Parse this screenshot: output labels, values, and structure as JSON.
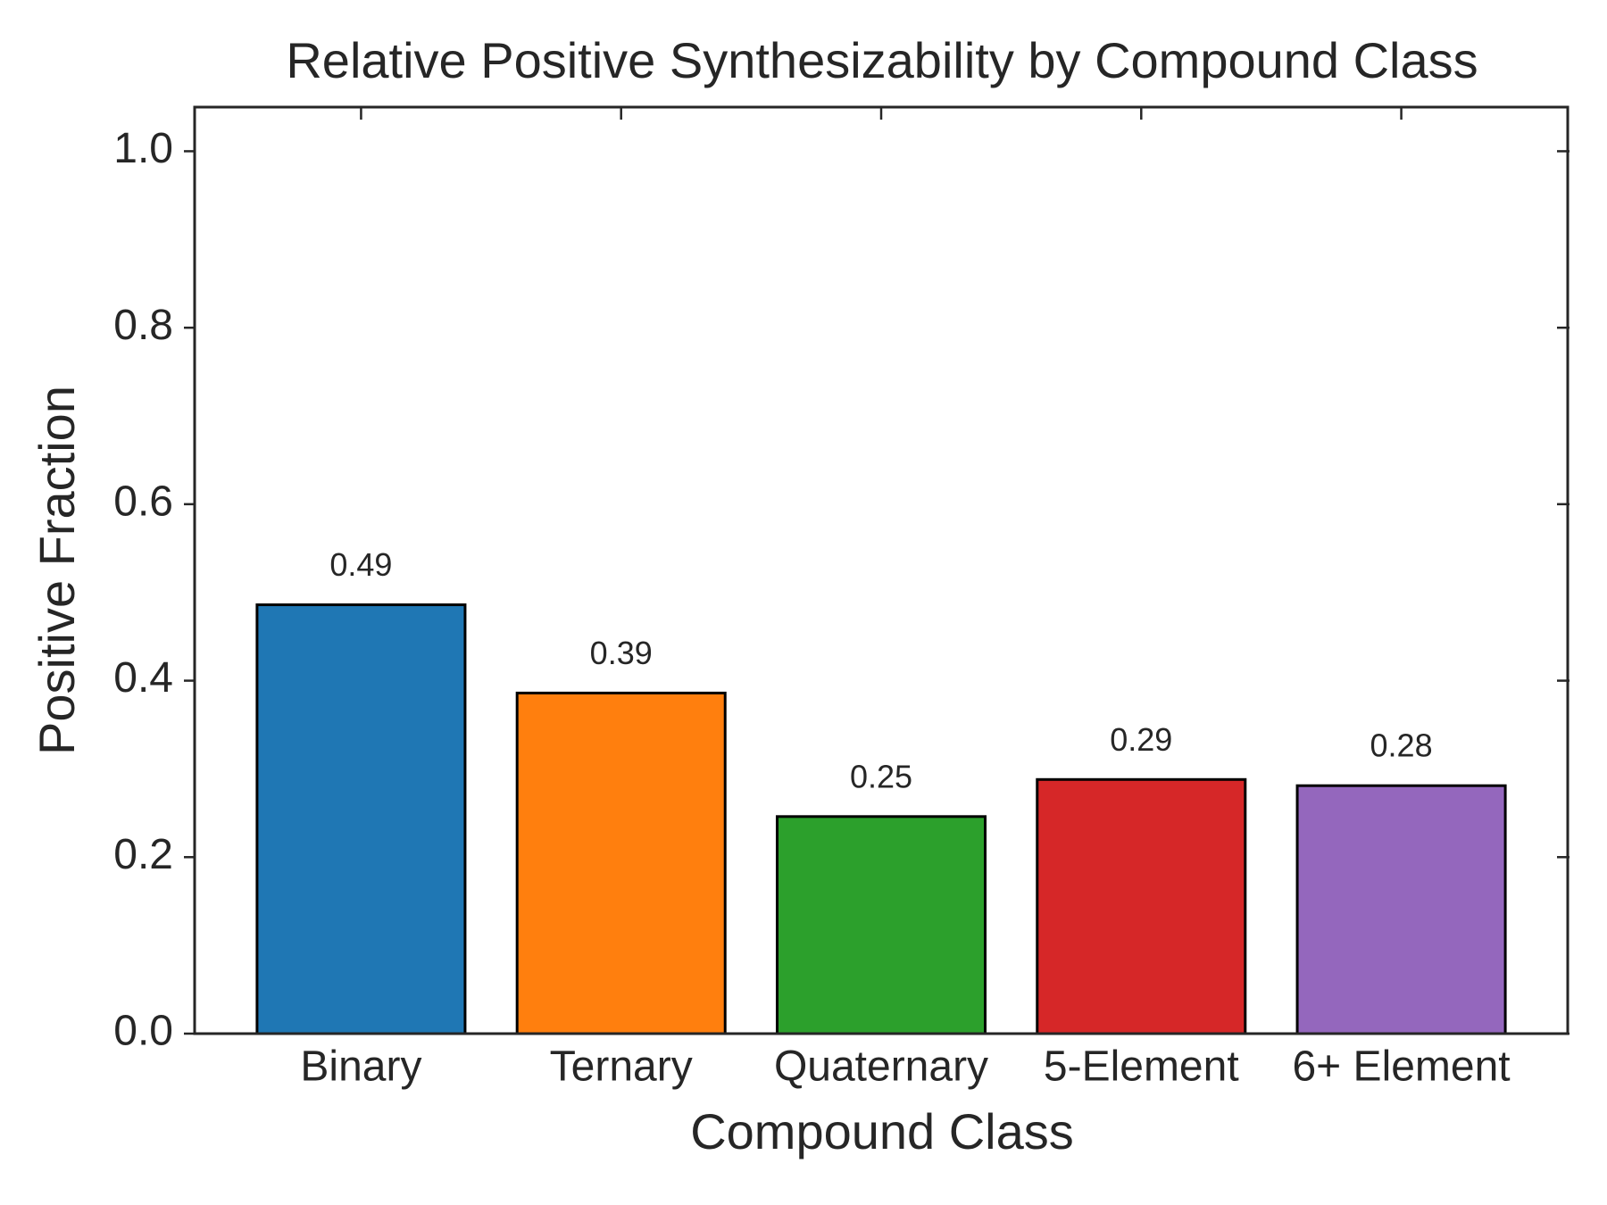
{
  "chart_data": {
    "type": "bar",
    "title": "Relative Positive Synthesizability by Compound Class",
    "x_label": "Compound Class",
    "y_label": "Positive Fraction",
    "categories": [
      "Binary",
      "Ternary",
      "Quaternary",
      "5-Element",
      "6+ Element"
    ],
    "values": [
      0.486,
      0.386,
      0.246,
      0.288,
      0.281
    ],
    "value_labels": [
      "0.49",
      "0.39",
      "0.25",
      "0.29",
      "0.28"
    ],
    "colors": [
      "#1f77b4",
      "#ff7f0e",
      "#2ca02c",
      "#d62728",
      "#9467bd"
    ],
    "ylim": [
      0,
      1.05
    ],
    "yticks": [
      {
        "value": 0,
        "label": "0.0"
      },
      {
        "value": 0.2,
        "label": "0.2"
      },
      {
        "value": 0.4,
        "label": "0.4"
      },
      {
        "value": 0.6,
        "label": "0.6"
      },
      {
        "value": 0.8,
        "label": "0.8"
      },
      {
        "value": 1.0,
        "label": "1.0"
      }
    ],
    "grid": false
  }
}
